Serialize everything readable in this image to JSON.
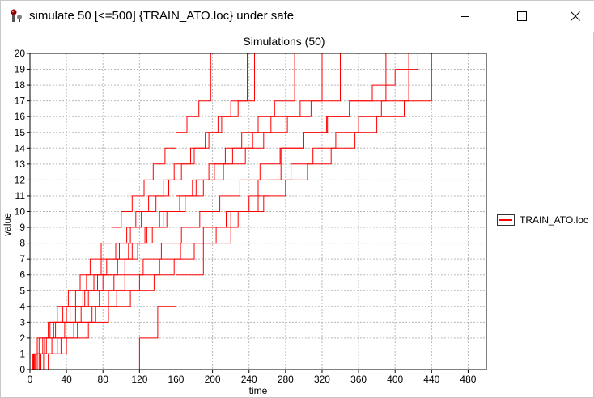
{
  "window": {
    "title": "simulate 50 [<=500] {TRAIN_ATO.loc} under safe",
    "icon": "uppaal-app-icon",
    "buttons": {
      "minimize": "minimize-icon",
      "maximize": "maximize-icon",
      "close": "close-icon"
    }
  },
  "chart_data": {
    "type": "line",
    "title": "Simulations (50)",
    "xlabel": "time",
    "ylabel": "value",
    "xlim": [
      0,
      500
    ],
    "ylim": [
      0,
      20
    ],
    "xticks": [
      "0",
      "40",
      "80",
      "120",
      "160",
      "200",
      "240",
      "280",
      "320",
      "360",
      "400",
      "440",
      "480"
    ],
    "yticks": [
      "0",
      "1",
      "2",
      "3",
      "4",
      "5",
      "6",
      "7",
      "8",
      "9",
      "10",
      "11",
      "12",
      "13",
      "14",
      "15",
      "16",
      "17",
      "18",
      "19",
      "20"
    ],
    "grid": true,
    "legend_position": "right",
    "line_color": "#ff0000",
    "series": [
      {
        "name": "TRAIN_ATO.loc",
        "runs": [
          {
            "x": [
              0,
              5,
              5,
              10,
              10,
              20,
              20,
              30,
              30,
              42,
              42,
              55,
              55,
              66,
              66,
              78,
              78,
              90,
              90,
              100,
              100,
              112,
              112,
              125,
              125,
              135,
              135,
              148,
              148,
              160,
              160,
              172,
              172,
              185,
              185,
              198,
              198,
              500
            ],
            "y": [
              0,
              0,
              1,
              1,
              2,
              2,
              3,
              3,
              4,
              4,
              5,
              5,
              6,
              6,
              7,
              7,
              8,
              8,
              9,
              9,
              10,
              10,
              11,
              11,
              12,
              12,
              13,
              13,
              14,
              14,
              15,
              15,
              16,
              16,
              17,
              17,
              20,
              20
            ]
          },
          {
            "x": [
              0,
              8,
              8,
              18,
              18,
              35,
              35,
              50,
              50,
              64,
              64,
              80,
              80,
              96,
              96,
              112,
              112,
              126,
              126,
              142,
              142,
              160,
              160,
              178,
              178,
              196,
              196,
              214,
              214,
              232,
              232,
              250,
              250,
              268,
              268,
              290,
              290,
              500
            ],
            "y": [
              0,
              0,
              1,
              1,
              2,
              2,
              3,
              3,
              4,
              4,
              5,
              5,
              6,
              6,
              7,
              7,
              8,
              8,
              9,
              9,
              10,
              10,
              11,
              11,
              12,
              12,
              13,
              13,
              14,
              14,
              15,
              15,
              16,
              16,
              17,
              17,
              20,
              20
            ]
          },
          {
            "x": [
              0,
              12,
              12,
              30,
              30,
              48,
              48,
              72,
              72,
              95,
              95,
              120,
              120,
              142,
              142,
              165,
              165,
              190,
              190,
              215,
              215,
              240,
              240,
              262,
              262,
              286,
              286,
              310,
              310,
              335,
              335,
              360,
              360,
              385,
              385,
              415,
              415,
              500
            ],
            "y": [
              0,
              0,
              1,
              1,
              2,
              2,
              3,
              3,
              4,
              4,
              5,
              5,
              6,
              6,
              7,
              7,
              8,
              8,
              9,
              9,
              10,
              10,
              11,
              11,
              12,
              12,
              13,
              13,
              14,
              14,
              15,
              15,
              16,
              16,
              17,
              17,
              20,
              20
            ]
          },
          {
            "x": [
              0,
              120,
              120,
              140,
              140,
              160,
              160,
              190,
              190,
              220,
              220,
              250,
              250,
              275,
              275,
              300,
              300,
              325,
              325,
              350,
              350,
              375,
              375,
              400,
              400,
              425,
              425,
              455,
              455,
              500
            ],
            "y": [
              0,
              0,
              2,
              2,
              4,
              4,
              6,
              6,
              8,
              8,
              10,
              10,
              12,
              12,
              14,
              14,
              15,
              15,
              16,
              16,
              17,
              17,
              18,
              18,
              19,
              19,
              20,
              20,
              20,
              20
            ]
          },
          {
            "x": [
              0,
              3,
              3,
              14,
              14,
              26,
              26,
              40,
              40,
              58,
              58,
              74,
              74,
              90,
              90,
              108,
              108,
              128,
              128,
              150,
              150,
              170,
              170,
              190,
              190,
              212,
              212,
              236,
              236,
              256,
              256,
              282,
              282,
              308,
              308,
              340,
              340,
              500
            ],
            "y": [
              0,
              0,
              1,
              1,
              2,
              2,
              3,
              3,
              4,
              4,
              5,
              5,
              6,
              6,
              7,
              7,
              8,
              8,
              9,
              9,
              10,
              10,
              11,
              11,
              12,
              12,
              13,
              13,
              14,
              14,
              15,
              15,
              16,
              16,
              17,
              17,
              20,
              20
            ]
          },
          {
            "x": [
              0,
              20,
              20,
              40,
              40,
              64,
              64,
              86,
              86,
              110,
              110,
              136,
              136,
              158,
              158,
              180,
              180,
              204,
              204,
              228,
              228,
              256,
              256,
              280,
              280,
              304,
              304,
              330,
              330,
              356,
              356,
              380,
              380,
              410,
              410,
              440,
              440,
              500
            ],
            "y": [
              0,
              0,
              1,
              1,
              2,
              2,
              3,
              3,
              4,
              4,
              5,
              5,
              6,
              6,
              7,
              7,
              8,
              8,
              9,
              9,
              10,
              10,
              11,
              11,
              12,
              12,
              13,
              13,
              14,
              14,
              15,
              15,
              16,
              16,
              17,
              17,
              20,
              20
            ]
          },
          {
            "x": [
              0,
              6,
              6,
              16,
              16,
              28,
              28,
              44,
              44,
              60,
              60,
              70,
              70,
              84,
              84,
              98,
              98,
              110,
              110,
              122,
              122,
              138,
              138,
              152,
              152,
              166,
              166,
              180,
              180,
              196,
              196,
              210,
              210,
              228,
              228,
              246,
              246,
              500
            ],
            "y": [
              0,
              0,
              1,
              1,
              2,
              2,
              3,
              3,
              4,
              4,
              5,
              5,
              6,
              6,
              7,
              7,
              8,
              8,
              9,
              9,
              10,
              10,
              11,
              11,
              12,
              12,
              13,
              13,
              14,
              14,
              15,
              15,
              16,
              16,
              17,
              17,
              20,
              20
            ]
          },
          {
            "x": [
              0,
              10,
              10,
              24,
              24,
              38,
              38,
              56,
              56,
              76,
              76,
              92,
              92,
              104,
              104,
              118,
              118,
              134,
              134,
              146,
              146,
              164,
              164,
              182,
              182,
              202,
              202,
              222,
              222,
              244,
              244,
              264,
              264,
              296,
              296,
              320,
              320,
              500
            ],
            "y": [
              0,
              0,
              1,
              1,
              2,
              2,
              3,
              3,
              4,
              4,
              5,
              5,
              6,
              6,
              7,
              7,
              8,
              8,
              9,
              9,
              10,
              10,
              11,
              11,
              12,
              12,
              13,
              13,
              14,
              14,
              15,
              15,
              16,
              16,
              17,
              17,
              20,
              20
            ]
          },
          {
            "x": [
              0,
              15,
              15,
              34,
              34,
              52,
              52,
              68,
              68,
              86,
              86,
              104,
              104,
              124,
              124,
              144,
              144,
              166,
              166,
              186,
              186,
              208,
              208,
              230,
              230,
              252,
              252,
              274,
              274,
              300,
              300,
              326,
              326,
              350,
              350,
              390,
              390,
              500
            ],
            "y": [
              0,
              0,
              1,
              1,
              2,
              2,
              3,
              3,
              4,
              4,
              5,
              5,
              6,
              6,
              7,
              7,
              8,
              8,
              9,
              9,
              10,
              10,
              11,
              11,
              12,
              12,
              13,
              13,
              14,
              14,
              15,
              15,
              16,
              16,
              17,
              17,
              20,
              20
            ]
          },
          {
            "x": [
              0,
              4,
              4,
              8,
              8,
              22,
              22,
              36,
              36,
              50,
              50,
              62,
              62,
              78,
              78,
              94,
              94,
              106,
              106,
              116,
              116,
              130,
              130,
              146,
              146,
              158,
              158,
              176,
              176,
              192,
              192,
              206,
              206,
              220,
              220,
              238,
              238,
              500
            ],
            "y": [
              0,
              0,
              1,
              1,
              2,
              2,
              3,
              3,
              4,
              4,
              5,
              5,
              6,
              6,
              7,
              7,
              8,
              8,
              9,
              9,
              10,
              10,
              11,
              11,
              12,
              12,
              13,
              13,
              14,
              14,
              15,
              15,
              16,
              16,
              17,
              17,
              20,
              20
            ]
          }
        ]
      }
    ]
  }
}
